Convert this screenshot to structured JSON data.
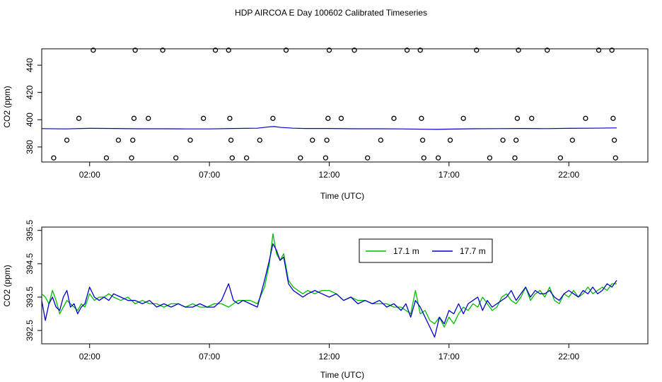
{
  "figure": {
    "title": "HDP AIRCOA E  Day 100602  Calibrated Timeseries"
  },
  "colors": {
    "series_green": "#00bb00",
    "series_blue": "#0000cc",
    "axes": "#000000"
  },
  "chart_data": [
    {
      "type": "scatter+line",
      "name": "top",
      "xlabel": "Time (UTC)",
      "ylabel": "CO2 (ppm)",
      "xlim": [
        0.0,
        25.3
      ],
      "ylim": [
        369,
        452
      ],
      "xticks": [
        2,
        7,
        12,
        17,
        22
      ],
      "xtick_labels": [
        "02:00",
        "07:00",
        "12:00",
        "17:00",
        "22:00"
      ],
      "yticks": [
        380,
        400,
        420,
        440
      ],
      "ytick_labels": [
        "380",
        "400",
        "420",
        "440"
      ],
      "grid": false,
      "points": [
        {
          "x": 0.5,
          "y": 372
        },
        {
          "x": 1.05,
          "y": 385
        },
        {
          "x": 1.55,
          "y": 401
        },
        {
          "x": 2.15,
          "y": 451
        },
        {
          "x": 2.7,
          "y": 372
        },
        {
          "x": 3.2,
          "y": 385
        },
        {
          "x": 3.75,
          "y": 372
        },
        {
          "x": 3.8,
          "y": 385
        },
        {
          "x": 3.85,
          "y": 401
        },
        {
          "x": 3.9,
          "y": 451
        },
        {
          "x": 4.45,
          "y": 401
        },
        {
          "x": 5.05,
          "y": 451
        },
        {
          "x": 5.6,
          "y": 372
        },
        {
          "x": 6.2,
          "y": 385
        },
        {
          "x": 6.75,
          "y": 401
        },
        {
          "x": 7.25,
          "y": 451
        },
        {
          "x": 7.8,
          "y": 451
        },
        {
          "x": 7.85,
          "y": 401
        },
        {
          "x": 7.9,
          "y": 385
        },
        {
          "x": 7.95,
          "y": 372
        },
        {
          "x": 8.55,
          "y": 372
        },
        {
          "x": 9.1,
          "y": 385
        },
        {
          "x": 9.65,
          "y": 401
        },
        {
          "x": 10.2,
          "y": 451
        },
        {
          "x": 10.8,
          "y": 372
        },
        {
          "x": 11.3,
          "y": 385
        },
        {
          "x": 11.85,
          "y": 372
        },
        {
          "x": 11.9,
          "y": 385
        },
        {
          "x": 11.95,
          "y": 401
        },
        {
          "x": 12.0,
          "y": 451
        },
        {
          "x": 12.5,
          "y": 401
        },
        {
          "x": 13.05,
          "y": 451
        },
        {
          "x": 13.6,
          "y": 372
        },
        {
          "x": 14.15,
          "y": 385
        },
        {
          "x": 14.7,
          "y": 401
        },
        {
          "x": 15.25,
          "y": 451
        },
        {
          "x": 15.8,
          "y": 451
        },
        {
          "x": 15.85,
          "y": 401
        },
        {
          "x": 15.9,
          "y": 385
        },
        {
          "x": 15.95,
          "y": 372
        },
        {
          "x": 16.55,
          "y": 372
        },
        {
          "x": 17.05,
          "y": 385
        },
        {
          "x": 17.6,
          "y": 401
        },
        {
          "x": 18.15,
          "y": 451
        },
        {
          "x": 18.7,
          "y": 372
        },
        {
          "x": 19.25,
          "y": 385
        },
        {
          "x": 19.75,
          "y": 372
        },
        {
          "x": 19.8,
          "y": 385
        },
        {
          "x": 19.85,
          "y": 401
        },
        {
          "x": 19.9,
          "y": 451
        },
        {
          "x": 20.45,
          "y": 401
        },
        {
          "x": 21.1,
          "y": 451
        },
        {
          "x": 21.65,
          "y": 372
        },
        {
          "x": 22.15,
          "y": 385
        },
        {
          "x": 22.7,
          "y": 401
        },
        {
          "x": 23.25,
          "y": 451
        },
        {
          "x": 23.8,
          "y": 451
        },
        {
          "x": 23.85,
          "y": 401
        },
        {
          "x": 23.9,
          "y": 385
        },
        {
          "x": 23.95,
          "y": 372
        }
      ],
      "line": {
        "x": [
          0,
          1,
          2,
          3,
          4,
          5,
          6,
          7,
          8,
          9,
          9.5,
          9.7,
          10,
          10.5,
          11,
          12,
          13,
          14,
          15,
          16,
          16.5,
          17,
          18,
          19,
          20,
          21,
          22,
          23,
          24
        ],
        "y": [
          393.5,
          393.3,
          393.7,
          393.6,
          393.4,
          393.4,
          393.3,
          393.3,
          393.6,
          393.8,
          394.8,
          395.0,
          394.3,
          393.8,
          393.6,
          393.6,
          393.4,
          393.4,
          393.3,
          393.0,
          392.9,
          393.1,
          393.4,
          393.5,
          393.6,
          393.5,
          393.7,
          393.8,
          394.0
        ]
      }
    },
    {
      "type": "line",
      "name": "bottom",
      "xlabel": "Time (UTC)",
      "ylabel": "CO2 (ppm)",
      "xlim": [
        0.0,
        25.3
      ],
      "ylim": [
        392.1,
        395.6
      ],
      "xticks": [
        2,
        7,
        12,
        17,
        22
      ],
      "xtick_labels": [
        "02:00",
        "07:00",
        "12:00",
        "17:00",
        "22:00"
      ],
      "yticks": [
        392.5,
        393.5,
        394.5,
        395.5
      ],
      "ytick_labels": [
        "392.5",
        "393.5",
        "394.5",
        "395.5"
      ],
      "grid": false,
      "legend": {
        "placement": "top-center",
        "entries": [
          "17.1 m",
          "17.7 m"
        ]
      },
      "x": [
        0.0,
        0.15,
        0.3,
        0.45,
        0.6,
        0.75,
        0.9,
        1.05,
        1.2,
        1.35,
        1.5,
        1.65,
        1.8,
        2.0,
        2.2,
        2.4,
        2.6,
        2.8,
        3.0,
        3.3,
        3.6,
        3.9,
        4.2,
        4.5,
        4.8,
        5.1,
        5.4,
        5.7,
        6.0,
        6.3,
        6.6,
        6.9,
        7.2,
        7.5,
        7.8,
        8.0,
        8.2,
        8.4,
        8.7,
        9.0,
        9.3,
        9.5,
        9.65,
        9.8,
        9.95,
        10.1,
        10.3,
        10.5,
        10.7,
        10.9,
        11.1,
        11.4,
        11.7,
        12.0,
        12.3,
        12.6,
        12.9,
        13.2,
        13.5,
        13.8,
        14.1,
        14.4,
        14.7,
        15.0,
        15.2,
        15.4,
        15.6,
        15.8,
        16.0,
        16.2,
        16.4,
        16.6,
        16.8,
        17.0,
        17.2,
        17.4,
        17.6,
        17.8,
        18.0,
        18.2,
        18.4,
        18.6,
        18.8,
        19.0,
        19.2,
        19.4,
        19.6,
        19.8,
        20.0,
        20.2,
        20.4,
        20.6,
        20.8,
        21.0,
        21.2,
        21.4,
        21.6,
        21.8,
        22.0,
        22.2,
        22.4,
        22.6,
        22.8,
        23.0,
        23.2,
        23.4,
        23.6,
        23.8,
        24.0
      ],
      "series": [
        {
          "name": "17.1 m",
          "color": "#00bb00",
          "values": [
            393.6,
            393.5,
            393.3,
            393.7,
            393.4,
            393.0,
            393.2,
            393.4,
            393.3,
            393.2,
            393.1,
            393.3,
            393.2,
            393.6,
            393.4,
            393.5,
            393.5,
            393.6,
            393.5,
            393.4,
            393.5,
            393.3,
            393.4,
            393.3,
            393.3,
            393.2,
            393.3,
            393.3,
            393.2,
            393.3,
            393.2,
            393.2,
            393.3,
            393.3,
            393.2,
            393.3,
            393.4,
            393.4,
            393.4,
            393.3,
            393.8,
            394.5,
            395.4,
            394.8,
            394.6,
            394.8,
            394.0,
            393.8,
            393.7,
            393.6,
            393.7,
            393.6,
            393.7,
            393.7,
            393.6,
            393.4,
            393.5,
            393.4,
            393.4,
            393.3,
            393.3,
            393.3,
            393.2,
            393.2,
            393.1,
            393.0,
            393.7,
            393.0,
            393.1,
            392.8,
            392.7,
            392.9,
            392.6,
            392.9,
            392.7,
            393.0,
            393.2,
            393.1,
            393.3,
            393.2,
            393.5,
            393.3,
            393.1,
            393.2,
            393.5,
            393.6,
            393.4,
            393.3,
            393.5,
            393.8,
            393.4,
            393.6,
            393.7,
            393.5,
            393.8,
            393.4,
            393.3,
            393.6,
            393.5,
            393.7,
            393.5,
            393.6,
            393.8,
            393.6,
            393.7,
            393.8,
            393.7,
            393.9,
            393.9
          ]
        },
        {
          "name": "17.7 m",
          "color": "#0000cc",
          "values": [
            393.4,
            392.8,
            393.3,
            393.5,
            393.2,
            393.1,
            393.5,
            393.7,
            393.2,
            393.3,
            393.0,
            393.2,
            393.3,
            393.8,
            393.5,
            393.4,
            393.5,
            393.4,
            393.6,
            393.5,
            393.4,
            393.4,
            393.3,
            393.4,
            393.2,
            393.3,
            393.2,
            393.3,
            393.2,
            393.2,
            393.3,
            393.2,
            393.2,
            393.4,
            393.9,
            393.4,
            393.3,
            393.4,
            393.3,
            393.2,
            394.0,
            394.6,
            395.1,
            394.9,
            394.6,
            394.7,
            393.9,
            393.7,
            393.6,
            393.5,
            393.6,
            393.7,
            393.6,
            393.5,
            393.6,
            393.4,
            393.5,
            393.3,
            393.4,
            393.3,
            393.4,
            393.2,
            393.3,
            393.1,
            393.3,
            392.9,
            393.4,
            393.2,
            392.9,
            392.6,
            392.3,
            392.9,
            392.7,
            393.1,
            393.0,
            393.3,
            393.0,
            393.3,
            393.4,
            393.5,
            393.1,
            393.4,
            393.2,
            393.3,
            393.4,
            393.5,
            393.7,
            393.4,
            393.6,
            393.8,
            393.5,
            393.7,
            393.6,
            393.6,
            393.7,
            393.5,
            393.4,
            393.6,
            393.7,
            393.6,
            393.5,
            393.7,
            393.6,
            393.8,
            393.6,
            393.7,
            393.9,
            393.8,
            394.0
          ]
        }
      ]
    }
  ]
}
